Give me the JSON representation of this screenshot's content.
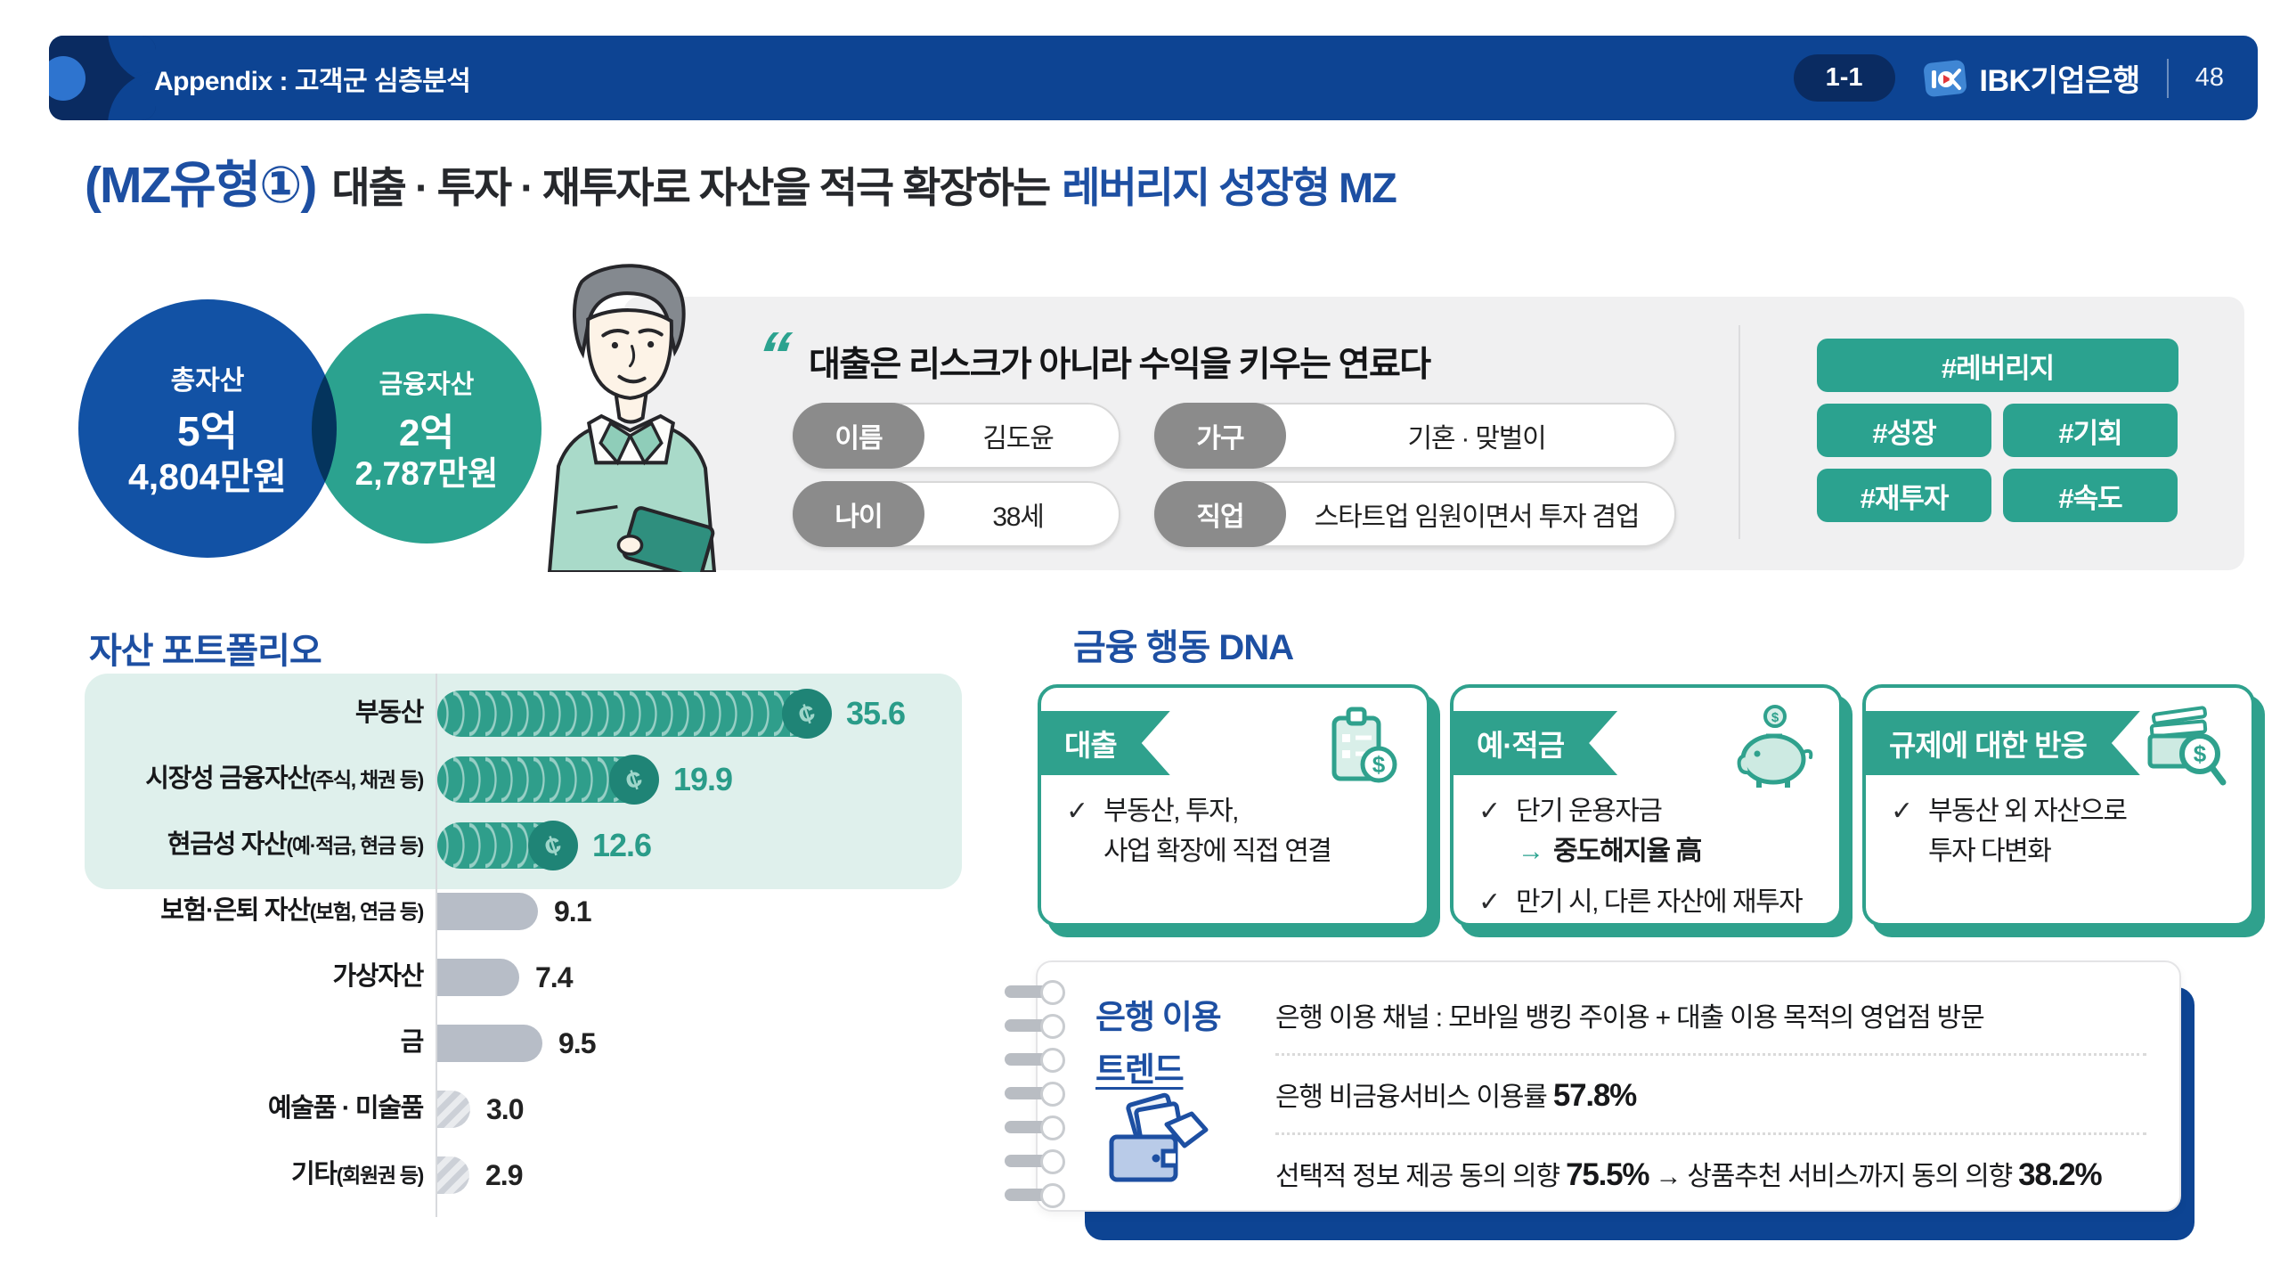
{
  "colors": {
    "brand_blue": "#0d4493",
    "navy": "#0a2b61",
    "title_blue": "#1d4fa2",
    "teal": "#2fa18d",
    "teal_dark": "#1f8476",
    "mint": "#dff0ec",
    "gray_bar": "#b7bdc7",
    "panel_gray": "#f0f0f1"
  },
  "header": {
    "breadcrumb": "Appendix : 고객군 심층분석",
    "badge": "1-1",
    "brand": "IBK기업은행",
    "page": "48"
  },
  "title": {
    "prefix": "(MZ유형①)",
    "middle": "대출 · 투자 · 재투자로 자산을 적극 확장하는",
    "highlight": "레버리지 성장형 MZ"
  },
  "profile": {
    "total_asset": {
      "label": "총자산",
      "line1": "5억",
      "line2": "4,804만원"
    },
    "financial_asset": {
      "label": "금융자산",
      "line1": "2억",
      "line2": "2,787만원"
    },
    "quote": "대출은 리스크가 아니라 수익을 키우는 연료다",
    "fields": [
      {
        "label": "이름",
        "value": "김도윤"
      },
      {
        "label": "가구",
        "value": "기혼 · 맞벌이"
      },
      {
        "label": "나이",
        "value": "38세"
      },
      {
        "label": "직업",
        "value": "스타트업 임원이면서 투자 겸업"
      }
    ],
    "hashtags": [
      {
        "label": "#레버리지",
        "wide": true
      },
      {
        "label": "#성장",
        "wide": false
      },
      {
        "label": "#기회",
        "wide": false
      },
      {
        "label": "#재투자",
        "wide": false
      },
      {
        "label": "#속도",
        "wide": false
      }
    ]
  },
  "chart_data": {
    "type": "bar",
    "orientation": "horizontal",
    "title": "자산 포트폴리오",
    "xlabel": "",
    "ylabel": "",
    "grid": false,
    "categories": [
      "부동산",
      "시장성 금융자산(주식, 채권 등)",
      "현금성 자산(예·적금, 현금 등)",
      "보험·은퇴 자산(보험, 연금 등)",
      "가상자산",
      "금",
      "예술품 · 미술품",
      "기타(회원권 등)"
    ],
    "values": [
      35.6,
      19.9,
      12.6,
      9.1,
      7.4,
      9.5,
      3.0,
      2.9
    ],
    "rows": [
      {
        "label": "부동산",
        "sub": "",
        "value": "35.6",
        "style": "coin",
        "highlight": true
      },
      {
        "label": "시장성 금융자산",
        "sub": "(주식, 채권 등)",
        "value": "19.9",
        "style": "coin",
        "highlight": true
      },
      {
        "label": "현금성 자산",
        "sub": "(예·적금, 현금 등)",
        "value": "12.6",
        "style": "coin",
        "highlight": true
      },
      {
        "label": "보험·은퇴 자산",
        "sub": "(보험, 연금 등)",
        "value": "9.1",
        "style": "solid",
        "highlight": false
      },
      {
        "label": "가상자산",
        "sub": "",
        "value": "7.4",
        "style": "solid",
        "highlight": false
      },
      {
        "label": "금",
        "sub": "",
        "value": "9.5",
        "style": "solid",
        "highlight": false
      },
      {
        "label": "예술품 · 미술품",
        "sub": "",
        "value": "3.0",
        "style": "hatched",
        "highlight": false
      },
      {
        "label": "기타",
        "sub": "(회원권 등)",
        "value": "2.9",
        "style": "hatched",
        "highlight": false
      }
    ]
  },
  "dna": {
    "title": "금융 행동 DNA",
    "cards": [
      {
        "title": "대출",
        "icon": "clipboard-dollar-icon",
        "bullets": [
          {
            "lines": [
              {
                "text": "부동산, 투자,",
                "arrow": false,
                "bold": false
              },
              {
                "text": "사업 확장에 직접 연결",
                "arrow": false,
                "bold": false
              }
            ]
          }
        ]
      },
      {
        "title": "예·적금",
        "icon": "piggy-bank-icon",
        "bullets": [
          {
            "lines": [
              {
                "text": "단기 운용자금",
                "arrow": false,
                "bold": false
              },
              {
                "text": "중도해지율 高",
                "arrow": true,
                "bold": true
              }
            ]
          },
          {
            "lines": [
              {
                "text": "만기 시, 다른 자산에 재투자",
                "arrow": false,
                "bold": false
              }
            ]
          }
        ]
      },
      {
        "title": "규제에 대한 반응",
        "icon": "money-search-icon",
        "bullets": [
          {
            "lines": [
              {
                "text": "부동산 외 자산으로",
                "arrow": false,
                "bold": false
              },
              {
                "text": "투자 다변화",
                "arrow": false,
                "bold": false
              }
            ]
          }
        ]
      }
    ]
  },
  "trend": {
    "title_line1": "은행 이용",
    "title_line2": "트렌드",
    "rows": [
      {
        "segments": [
          {
            "text": "은행 이용 채널 : 모바일 뱅킹 주이용 + 대출 이용 목적의 영업점 방문",
            "bold": false
          }
        ]
      },
      {
        "segments": [
          {
            "text": "은행 비금융서비스 이용률 ",
            "bold": false
          },
          {
            "text": "57.8%",
            "bold": true
          }
        ]
      },
      {
        "segments": [
          {
            "text": "선택적 정보 제공 동의 의향 ",
            "bold": false
          },
          {
            "text": "75.5%",
            "bold": true
          },
          {
            "text": " → 상품추천 서비스까지 동의 의향 ",
            "bold": false
          },
          {
            "text": "38.2%",
            "bold": true
          }
        ]
      }
    ]
  }
}
